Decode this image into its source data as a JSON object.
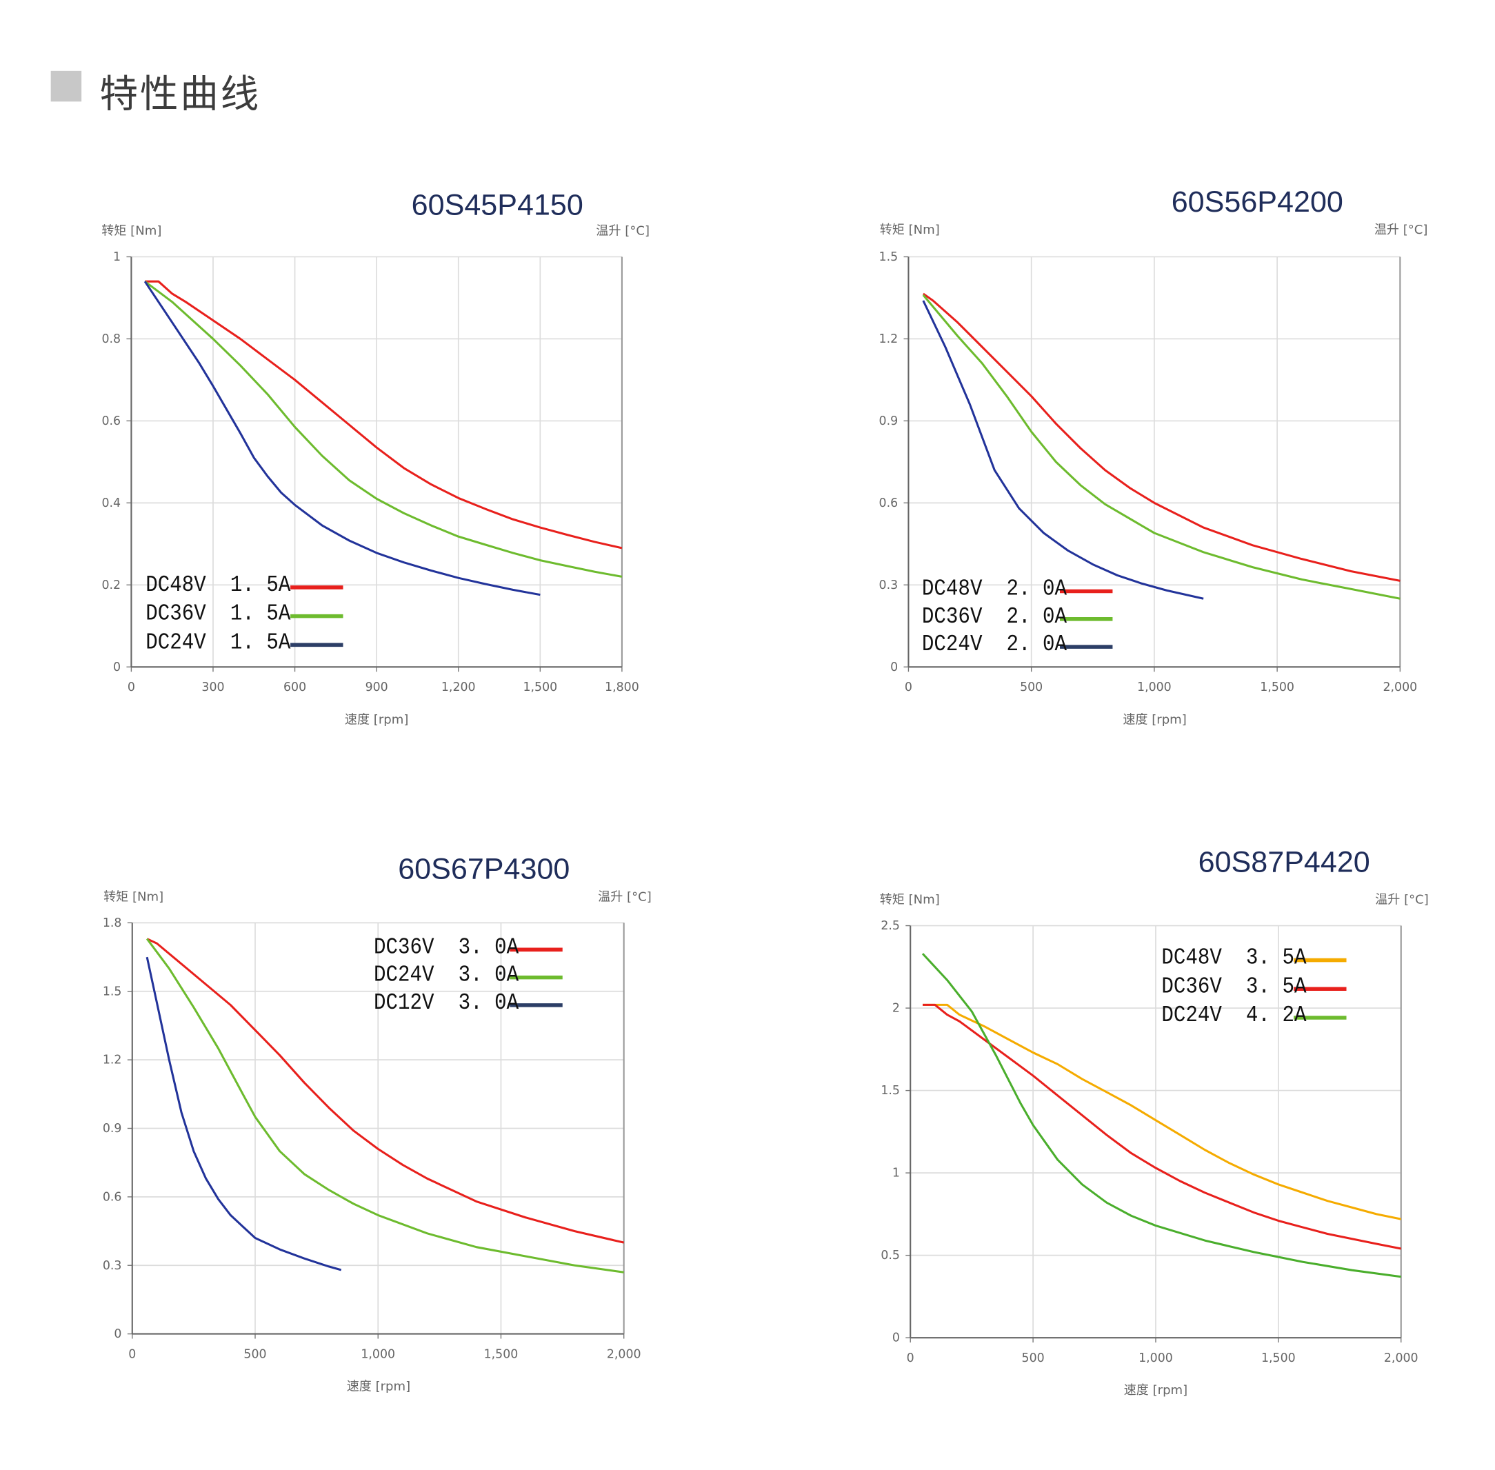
{
  "header": {
    "title": "特性曲线"
  },
  "chart_data": [
    {
      "type": "line",
      "title": "60S45P4150",
      "ylabel": "转矩 [Nm]",
      "y2label": "温升 [°C]",
      "xlabel": "速度 [rpm]",
      "xlim": [
        0,
        1800
      ],
      "ylim": [
        0,
        1
      ],
      "xticks": [
        0,
        300,
        600,
        900,
        1200,
        1500,
        1800
      ],
      "xtick_labels": [
        "0",
        "300",
        "600",
        "900",
        "1,200",
        "1,500",
        "1,800"
      ],
      "yticks": [
        0,
        0.2,
        0.4,
        0.6,
        0.8,
        1
      ],
      "ytick_labels": [
        "0",
        "0.2",
        "0.4",
        "0.6",
        "0.8",
        "1"
      ],
      "grid": true,
      "legend_position": "bottom-left",
      "series": [
        {
          "name": "DC48V  1. 5A",
          "color": "#e8201c",
          "points": [
            [
              50,
              0.94
            ],
            [
              100,
              0.94
            ],
            [
              150,
              0.91
            ],
            [
              200,
              0.89
            ],
            [
              300,
              0.845
            ],
            [
              400,
              0.8
            ],
            [
              500,
              0.75
            ],
            [
              600,
              0.7
            ],
            [
              700,
              0.645
            ],
            [
              800,
              0.59
            ],
            [
              900,
              0.535
            ],
            [
              1000,
              0.485
            ],
            [
              1100,
              0.445
            ],
            [
              1200,
              0.412
            ],
            [
              1300,
              0.385
            ],
            [
              1400,
              0.36
            ],
            [
              1500,
              0.34
            ],
            [
              1600,
              0.322
            ],
            [
              1700,
              0.305
            ],
            [
              1800,
              0.29
            ]
          ]
        },
        {
          "name": "DC36V  1. 5A",
          "color": "#6dbb2e",
          "points": [
            [
              50,
              0.94
            ],
            [
              150,
              0.89
            ],
            [
              200,
              0.86
            ],
            [
              300,
              0.8
            ],
            [
              400,
              0.735
            ],
            [
              500,
              0.665
            ],
            [
              600,
              0.585
            ],
            [
              700,
              0.515
            ],
            [
              800,
              0.455
            ],
            [
              900,
              0.41
            ],
            [
              1000,
              0.375
            ],
            [
              1100,
              0.345
            ],
            [
              1200,
              0.318
            ],
            [
              1300,
              0.298
            ],
            [
              1400,
              0.278
            ],
            [
              1500,
              0.26
            ],
            [
              1600,
              0.246
            ],
            [
              1700,
              0.232
            ],
            [
              1800,
              0.22
            ]
          ]
        },
        {
          "name": "DC24V  1. 5A",
          "color": "#22339a",
          "legend_color": "#2c3e66",
          "points": [
            [
              50,
              0.94
            ],
            [
              150,
              0.84
            ],
            [
              250,
              0.74
            ],
            [
              300,
              0.685
            ],
            [
              400,
              0.57
            ],
            [
              450,
              0.51
            ],
            [
              500,
              0.465
            ],
            [
              550,
              0.425
            ],
            [
              600,
              0.395
            ],
            [
              700,
              0.345
            ],
            [
              800,
              0.308
            ],
            [
              900,
              0.278
            ],
            [
              1000,
              0.255
            ],
            [
              1100,
              0.235
            ],
            [
              1200,
              0.217
            ],
            [
              1300,
              0.202
            ],
            [
              1400,
              0.188
            ],
            [
              1500,
              0.176
            ]
          ]
        }
      ]
    },
    {
      "type": "line",
      "title": "60S56P4200",
      "ylabel": "转矩 [Nm]",
      "y2label": "温升 [°C]",
      "xlabel": "速度 [rpm]",
      "xlim": [
        0,
        2000
      ],
      "ylim": [
        0,
        1.5
      ],
      "xticks": [
        0,
        500,
        1000,
        1500,
        2000
      ],
      "xtick_labels": [
        "0",
        "500",
        "1,000",
        "1,500",
        "2,000"
      ],
      "yticks": [
        0,
        0.3,
        0.6,
        0.9,
        1.2,
        1.5
      ],
      "ytick_labels": [
        "0",
        "0.3",
        "0.6",
        "0.9",
        "1.2",
        "1.5"
      ],
      "grid": true,
      "legend_position": "bottom-left",
      "series": [
        {
          "name": "DC48V  2. 0A",
          "color": "#e8201c",
          "points": [
            [
              60,
              1.365
            ],
            [
              100,
              1.34
            ],
            [
              200,
              1.26
            ],
            [
              300,
              1.17
            ],
            [
              400,
              1.08
            ],
            [
              500,
              0.99
            ],
            [
              600,
              0.89
            ],
            [
              700,
              0.8
            ],
            [
              800,
              0.72
            ],
            [
              900,
              0.655
            ],
            [
              1000,
              0.6
            ],
            [
              1200,
              0.51
            ],
            [
              1400,
              0.445
            ],
            [
              1600,
              0.395
            ],
            [
              1800,
              0.35
            ],
            [
              2000,
              0.315
            ]
          ]
        },
        {
          "name": "DC36V  2. 0A",
          "color": "#6dbb2e",
          "points": [
            [
              60,
              1.36
            ],
            [
              200,
              1.21
            ],
            [
              300,
              1.11
            ],
            [
              400,
              0.99
            ],
            [
              500,
              0.86
            ],
            [
              600,
              0.75
            ],
            [
              700,
              0.665
            ],
            [
              800,
              0.595
            ],
            [
              1000,
              0.49
            ],
            [
              1200,
              0.42
            ],
            [
              1400,
              0.365
            ],
            [
              1600,
              0.32
            ],
            [
              1800,
              0.285
            ],
            [
              2000,
              0.25
            ]
          ]
        },
        {
          "name": "DC24V  2. 0A",
          "color": "#22339a",
          "legend_color": "#2c3e66",
          "points": [
            [
              60,
              1.34
            ],
            [
              150,
              1.17
            ],
            [
              250,
              0.96
            ],
            [
              350,
              0.72
            ],
            [
              450,
              0.58
            ],
            [
              550,
              0.49
            ],
            [
              650,
              0.425
            ],
            [
              750,
              0.375
            ],
            [
              850,
              0.335
            ],
            [
              950,
              0.305
            ],
            [
              1050,
              0.28
            ],
            [
              1200,
              0.25
            ]
          ]
        }
      ]
    },
    {
      "type": "line",
      "title": "60S67P4300",
      "ylabel": "转矩 [Nm]",
      "y2label": "温升 [°C]",
      "xlabel": "速度 [rpm]",
      "xlim": [
        0,
        2000
      ],
      "ylim": [
        0,
        1.8
      ],
      "xticks": [
        0,
        500,
        1000,
        1500,
        2000
      ],
      "xtick_labels": [
        "0",
        "500",
        "1,000",
        "1,500",
        "2,000"
      ],
      "yticks": [
        0,
        0.3,
        0.6,
        0.9,
        1.2,
        1.5,
        1.8
      ],
      "ytick_labels": [
        "0",
        "0.3",
        "0.6",
        "0.9",
        "1.2",
        "1.5",
        "1.8"
      ],
      "grid": true,
      "legend_position": "top-right",
      "series": [
        {
          "name": "DC36V  3. 0A",
          "color": "#e8201c",
          "points": [
            [
              60,
              1.73
            ],
            [
              100,
              1.71
            ],
            [
              200,
              1.62
            ],
            [
              300,
              1.53
            ],
            [
              400,
              1.44
            ],
            [
              500,
              1.33
            ],
            [
              600,
              1.22
            ],
            [
              700,
              1.1
            ],
            [
              800,
              0.99
            ],
            [
              900,
              0.89
            ],
            [
              1000,
              0.81
            ],
            [
              1100,
              0.74
            ],
            [
              1200,
              0.68
            ],
            [
              1400,
              0.58
            ],
            [
              1600,
              0.51
            ],
            [
              1800,
              0.45
            ],
            [
              2000,
              0.4
            ]
          ]
        },
        {
          "name": "DC24V  3. 0A",
          "color": "#6dbb2e",
          "points": [
            [
              60,
              1.73
            ],
            [
              150,
              1.6
            ],
            [
              250,
              1.43
            ],
            [
              350,
              1.25
            ],
            [
              450,
              1.05
            ],
            [
              500,
              0.95
            ],
            [
              600,
              0.8
            ],
            [
              700,
              0.7
            ],
            [
              800,
              0.63
            ],
            [
              900,
              0.57
            ],
            [
              1000,
              0.52
            ],
            [
              1200,
              0.44
            ],
            [
              1400,
              0.38
            ],
            [
              1600,
              0.34
            ],
            [
              1800,
              0.3
            ],
            [
              2000,
              0.27
            ]
          ]
        },
        {
          "name": "DC12V  3. 0A",
          "color": "#22339a",
          "legend_color": "#2c3e66",
          "points": [
            [
              60,
              1.65
            ],
            [
              100,
              1.45
            ],
            [
              150,
              1.2
            ],
            [
              200,
              0.97
            ],
            [
              250,
              0.8
            ],
            [
              300,
              0.68
            ],
            [
              350,
              0.59
            ],
            [
              400,
              0.52
            ],
            [
              450,
              0.47
            ],
            [
              500,
              0.42
            ],
            [
              600,
              0.37
            ],
            [
              700,
              0.33
            ],
            [
              800,
              0.295
            ],
            [
              850,
              0.28
            ]
          ]
        }
      ]
    },
    {
      "type": "line",
      "title": "60S87P4420",
      "ylabel": "转矩 [Nm]",
      "y2label": "温升 [°C]",
      "xlabel": "速度 [rpm]",
      "xlim": [
        0,
        2000
      ],
      "ylim": [
        0,
        2.5
      ],
      "xticks": [
        0,
        500,
        1000,
        1500,
        2000
      ],
      "xtick_labels": [
        "0",
        "500",
        "1,000",
        "1,500",
        "2,000"
      ],
      "yticks": [
        0,
        0.5,
        1,
        1.5,
        2,
        2.5
      ],
      "ytick_labels": [
        "0",
        "0.5",
        "1",
        "1.5",
        "2",
        "2.5"
      ],
      "grid": true,
      "legend_position": "top-right",
      "series": [
        {
          "name": "DC48V  3. 5A",
          "color": "#f5ab00",
          "points": [
            [
              50,
              2.02
            ],
            [
              150,
              2.02
            ],
            [
              200,
              1.96
            ],
            [
              300,
              1.89
            ],
            [
              400,
              1.81
            ],
            [
              500,
              1.73
            ],
            [
              600,
              1.66
            ],
            [
              700,
              1.57
            ],
            [
              800,
              1.49
            ],
            [
              900,
              1.41
            ],
            [
              1000,
              1.32
            ],
            [
              1100,
              1.23
            ],
            [
              1200,
              1.14
            ],
            [
              1300,
              1.06
            ],
            [
              1400,
              0.99
            ],
            [
              1500,
              0.93
            ],
            [
              1600,
              0.88
            ],
            [
              1700,
              0.83
            ],
            [
              1800,
              0.79
            ],
            [
              1900,
              0.75
            ],
            [
              2000,
              0.72
            ]
          ]
        },
        {
          "name": "DC36V  3. 5A",
          "color": "#e8201c",
          "points": [
            [
              50,
              2.02
            ],
            [
              100,
              2.02
            ],
            [
              150,
              1.96
            ],
            [
              200,
              1.92
            ],
            [
              300,
              1.81
            ],
            [
              400,
              1.7
            ],
            [
              500,
              1.59
            ],
            [
              600,
              1.47
            ],
            [
              700,
              1.35
            ],
            [
              800,
              1.23
            ],
            [
              900,
              1.12
            ],
            [
              1000,
              1.03
            ],
            [
              1100,
              0.95
            ],
            [
              1200,
              0.88
            ],
            [
              1300,
              0.82
            ],
            [
              1400,
              0.76
            ],
            [
              1500,
              0.71
            ],
            [
              1600,
              0.67
            ],
            [
              1700,
              0.63
            ],
            [
              1800,
              0.6
            ],
            [
              1900,
              0.57
            ],
            [
              2000,
              0.54
            ]
          ]
        },
        {
          "name": "DC24V  4. 2A",
          "color": "#4aae2c",
          "legend_color": "#6dbb2e",
          "points": [
            [
              50,
              2.33
            ],
            [
              150,
              2.17
            ],
            [
              250,
              1.98
            ],
            [
              350,
              1.71
            ],
            [
              450,
              1.42
            ],
            [
              500,
              1.29
            ],
            [
              600,
              1.08
            ],
            [
              700,
              0.93
            ],
            [
              800,
              0.82
            ],
            [
              900,
              0.74
            ],
            [
              1000,
              0.68
            ],
            [
              1200,
              0.59
            ],
            [
              1400,
              0.52
            ],
            [
              1600,
              0.46
            ],
            [
              1800,
              0.41
            ],
            [
              2000,
              0.37
            ]
          ]
        }
      ]
    }
  ]
}
